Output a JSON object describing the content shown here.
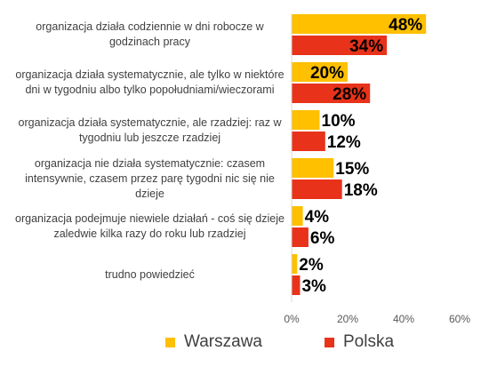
{
  "chart_data": {
    "type": "bar",
    "orientation": "horizontal",
    "categories": [
      "organizacja działa codziennie w dni robocze w godzinach pracy",
      "organizacja działa systematycznie, ale tylko w niektóre dni w tygodniu albo tylko popołudniami/wieczorami",
      "organizacja działa systematycznie, ale rzadziej: raz w tygodniu lub jeszcze rzadziej",
      "organizacja nie działa systematycznie: czasem intensywnie, czasem przez parę tygodni nic się nie dzieje",
      "organizacja podejmuje niewiele działań - coś się dzieje zaledwie kilka razy do roku lub rzadziej",
      "trudno powiedzieć"
    ],
    "series": [
      {
        "name": "Warszawa",
        "color": "#FFC000",
        "values": [
          48,
          20,
          10,
          15,
          4,
          2
        ],
        "labels": [
          "48%",
          "20%",
          "10%",
          "15%",
          "4%",
          "2%"
        ]
      },
      {
        "name": "Polska",
        "color": "#E8321A",
        "values": [
          34,
          28,
          12,
          18,
          6,
          3
        ],
        "labels": [
          "34%",
          "28%",
          "12%",
          "18%",
          "6%",
          "3%"
        ]
      }
    ],
    "xlim": [
      0,
      60
    ],
    "x_ticks": [
      "0%",
      "20%",
      "40%",
      "60%"
    ],
    "grid": false,
    "legend_position": "bottom"
  }
}
